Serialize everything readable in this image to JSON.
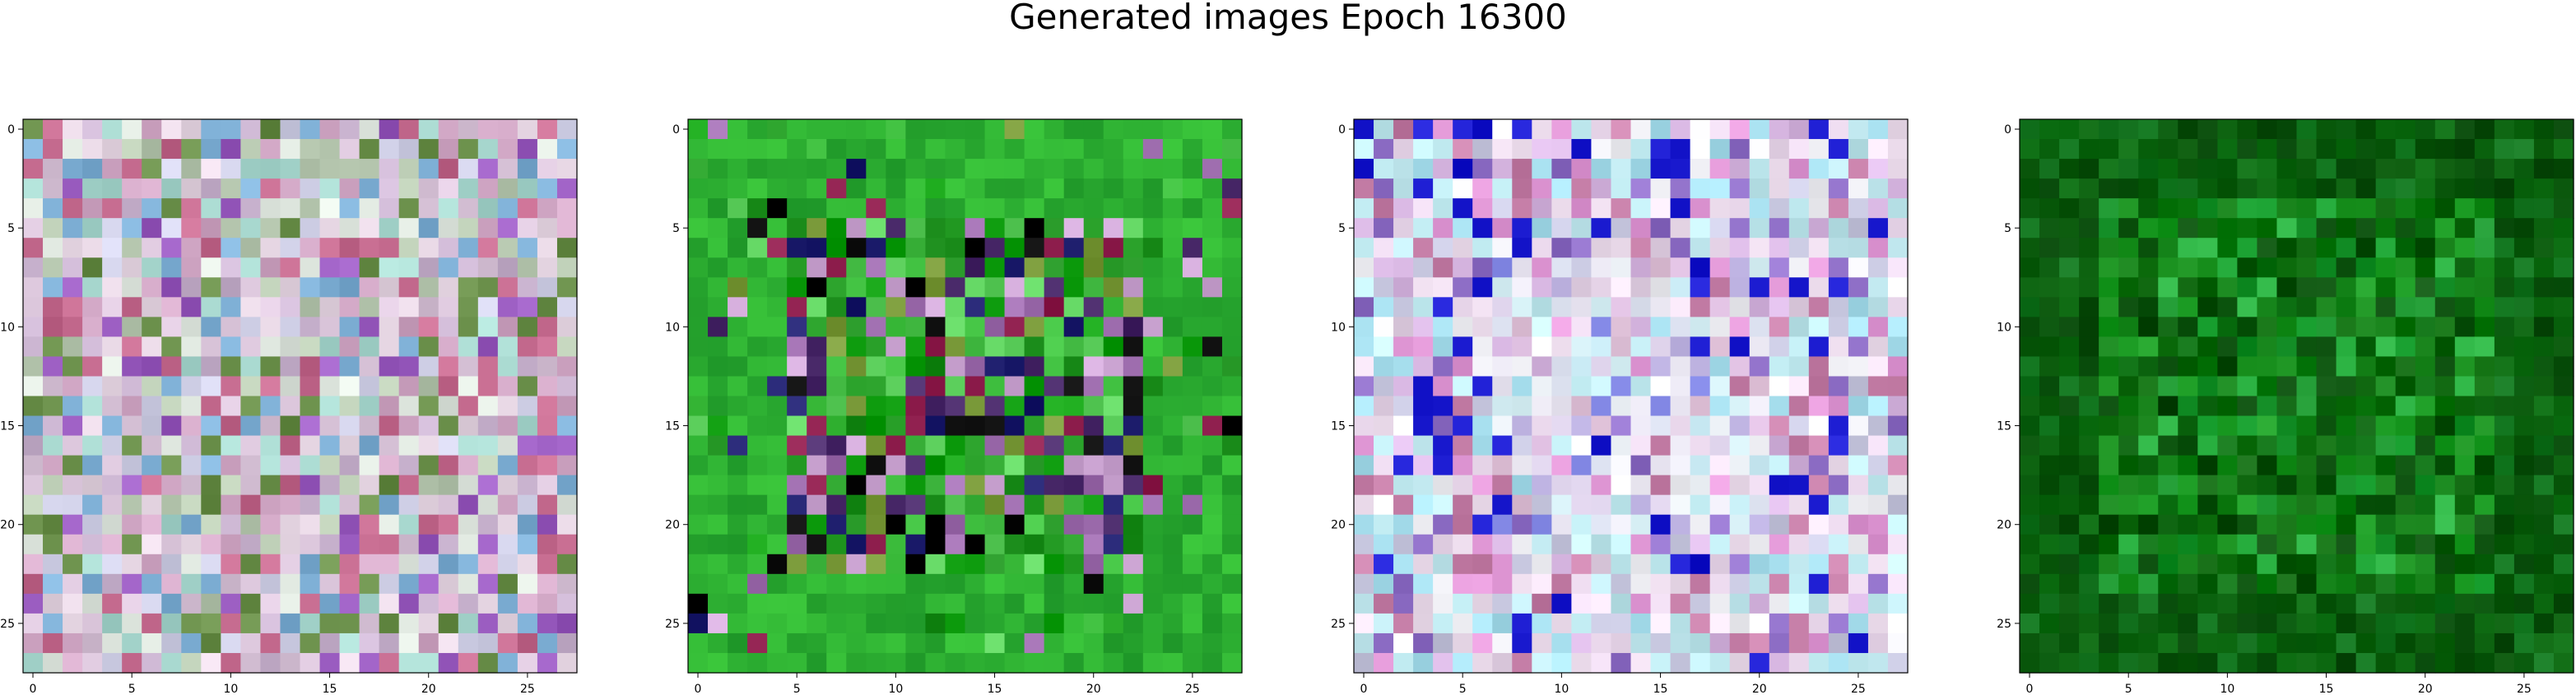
{
  "figure": {
    "title": "Generated images Epoch 16300"
  },
  "chart_data": [
    {
      "type": "heatmap",
      "subtype": "rgb-image",
      "grid_size": [
        28,
        28
      ],
      "dominant_tone": "pastel pink/lavender/grey noise",
      "palette": [
        "#d9c4d9",
        "#c9b3cf",
        "#e6d6e3",
        "#b8c9b1",
        "#d2a8c6",
        "#a8d8cf",
        "#cfcfe6",
        "#9a5cc0",
        "#6a8f4a",
        "#e0e8e0",
        "#c46a8e",
        "#7fb0d6"
      ],
      "xticks": [
        "0",
        "5",
        "10",
        "15",
        "20",
        "25"
      ],
      "yticks": [
        "0",
        "5",
        "10",
        "15",
        "20",
        "25"
      ],
      "xlim": [
        -0.5,
        27.5
      ],
      "ylim": [
        27.5,
        -0.5
      ]
    },
    {
      "type": "heatmap",
      "subtype": "rgb-image",
      "grid_size": [
        28,
        28
      ],
      "dominant_tone": "bright green border with dark/colorful center",
      "palette": [
        "#2fa62f",
        "#3fbf3f",
        "#1e8f1e",
        "#5fd25f",
        "#0a0a0a",
        "#1f1f6e",
        "#8f1f4e",
        "#cfa8d6",
        "#7a9a3a",
        "#12a012",
        "#4a2a6a",
        "#a06fb0"
      ],
      "xticks": [
        "0",
        "5",
        "10",
        "15",
        "20",
        "25"
      ],
      "yticks": [
        "0",
        "5",
        "10",
        "15",
        "20",
        "25"
      ],
      "xlim": [
        -0.5,
        27.5
      ],
      "ylim": [
        27.5,
        -0.5
      ]
    },
    {
      "type": "heatmap",
      "subtype": "rgb-image",
      "grid_size": [
        28,
        28
      ],
      "dominant_tone": "pale cyan/white center with pink/purple border",
      "palette": [
        "#e8d6ea",
        "#d9b8e3",
        "#c7eef5",
        "#bfe9ef",
        "#f2f2f7",
        "#e39ad8",
        "#8f6fc7",
        "#c8c8e0",
        "#c67fa8",
        "#a8e0ef",
        "#1a1acf",
        "#f0e0f0"
      ],
      "xticks": [
        "0",
        "5",
        "10",
        "15",
        "20",
        "25"
      ],
      "yticks": [
        "0",
        "5",
        "10",
        "15",
        "20",
        "25"
      ],
      "xlim": [
        -0.5,
        27.5
      ],
      "ylim": [
        27.5,
        -0.5
      ]
    },
    {
      "type": "heatmap",
      "subtype": "rgb-image",
      "grid_size": [
        28,
        28
      ],
      "dominant_tone": "dark green with brighter green center",
      "palette": [
        "#0b6a0b",
        "#0f7a12",
        "#075e0a",
        "#138a18",
        "#0a520c",
        "#1a9a22",
        "#0c6f12",
        "#29b040",
        "#064a08",
        "#118016",
        "#0e660e",
        "#17912a"
      ],
      "xticks": [
        "0",
        "5",
        "10",
        "15",
        "20",
        "25"
      ],
      "yticks": [
        "0",
        "5",
        "10",
        "15",
        "20",
        "25"
      ],
      "xlim": [
        -0.5,
        27.5
      ],
      "ylim": [
        27.5,
        -0.5
      ]
    }
  ]
}
